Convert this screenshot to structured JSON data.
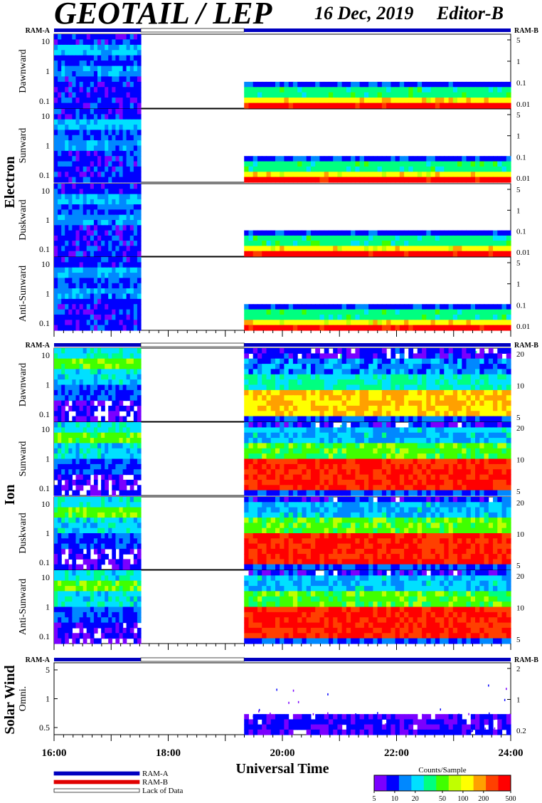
{
  "header": {
    "title": "GEOTAIL / LEP",
    "date": "16 Dec, 2019",
    "editor": "Editor-B"
  },
  "colors": {
    "ram_a": "#0000c0",
    "ram_b": "#e00000",
    "lack": "#ffffff"
  },
  "sections": [
    {
      "name": "Electron",
      "ram_left": "RAM-A",
      "ram_right": "RAM-B",
      "panels": [
        {
          "label": "Dawnward",
          "left_ticks": [
            "10",
            "1",
            "0.1"
          ],
          "right_ticks": [
            "5",
            "1",
            "0.1",
            "0.01"
          ]
        },
        {
          "label": "Sunward",
          "left_ticks": [
            "10",
            "1",
            "0.1"
          ],
          "right_ticks": [
            "5",
            "1",
            "0.1",
            "0.01"
          ]
        },
        {
          "label": "Duskward",
          "left_ticks": [
            "10",
            "1",
            "0.1"
          ],
          "right_ticks": [
            "5",
            "1",
            "0.1",
            "0.01"
          ]
        },
        {
          "label": "Anti-Sunward",
          "left_ticks": [
            "10",
            "1",
            "0.1"
          ],
          "right_ticks": [
            "5",
            "1",
            "0.1",
            "0.01"
          ]
        }
      ]
    },
    {
      "name": "Ion",
      "ram_left": "RAM-A",
      "ram_right": "RAM-B",
      "panels": [
        {
          "label": "Dawnward",
          "left_ticks": [
            "10",
            "1",
            "0.1"
          ],
          "right_ticks": [
            "20",
            "10",
            "5"
          ]
        },
        {
          "label": "Sunward",
          "left_ticks": [
            "10",
            "1",
            "0.1"
          ],
          "right_ticks": [
            "20",
            "10",
            "5"
          ]
        },
        {
          "label": "Duskward",
          "left_ticks": [
            "10",
            "1",
            "0.1"
          ],
          "right_ticks": [
            "20",
            "10",
            "5"
          ]
        },
        {
          "label": "Anti-Sunward",
          "left_ticks": [
            "10",
            "1",
            "0.1"
          ],
          "right_ticks": [
            "20",
            "10",
            "5"
          ]
        }
      ]
    },
    {
      "name": "Solar Wind",
      "ram_left": "RAM-A",
      "ram_right": "RAM-B",
      "panels": [
        {
          "label": "Omni.",
          "left_ticks": [
            "5",
            "1",
            "0.5"
          ],
          "right_ticks": [
            "2",
            "1",
            "0.2"
          ]
        }
      ]
    }
  ],
  "chart_data": {
    "type": "heatmap",
    "xlabel": "Universal Time",
    "x_ticks": [
      "16:00",
      "18:00",
      "20:00",
      "22:00",
      "24:00"
    ],
    "x_range_hours": [
      16,
      24
    ],
    "data_gaps_hours": [
      [
        17.52,
        19.33
      ]
    ],
    "colorbar": {
      "title": "Counts/Sample",
      "ticks": [
        "5",
        "10",
        "20",
        "50",
        "100",
        "200",
        "500"
      ],
      "colors": [
        "#7a00ff",
        "#0000ff",
        "#0088ff",
        "#00e0ff",
        "#00ff80",
        "#40ff00",
        "#c0ff00",
        "#ffff00",
        "#ffa000",
        "#ff4000",
        "#ff0000"
      ]
    }
  },
  "legend": {
    "items": [
      {
        "label": "RAM-A",
        "color": "#0000c0",
        "style": "solid"
      },
      {
        "label": "RAM-B",
        "color": "#e00000",
        "style": "solid"
      },
      {
        "label": "Lack of Data",
        "color": "#ffffff",
        "style": "outline"
      }
    ]
  }
}
